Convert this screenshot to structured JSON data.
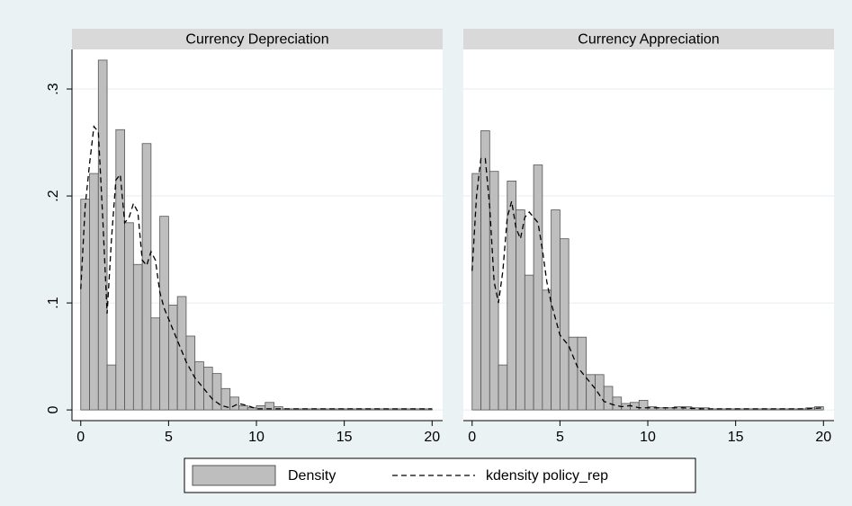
{
  "chart_data": {
    "type": "histogram",
    "series": [
      {
        "name": "Density",
        "color": "#bebebe"
      },
      {
        "name": "kdensity policy_rep",
        "color": "#000000"
      }
    ],
    "xlim": [
      -0.5,
      20.6
    ],
    "xticks": [
      0,
      5,
      10,
      15,
      20
    ],
    "ylim": [
      -0.01,
      0.337
    ],
    "yticks": [
      0,
      {
        "value": 0.1,
        "label": ".1"
      },
      {
        "value": 0.2,
        "label": ".2"
      },
      {
        "value": 0.3,
        "label": ".3"
      }
    ],
    "grid": true,
    "panels": [
      {
        "title": "Currency Depreciation",
        "bins": [
          0,
          0.5,
          1,
          1.5,
          2,
          2.5,
          3,
          3.5,
          4,
          4.5,
          5,
          5.5,
          6,
          6.5,
          7,
          7.5,
          8,
          8.5,
          9,
          9.5,
          10,
          10.5,
          11,
          11.5,
          12,
          12.5,
          13,
          13.5,
          14,
          14.5,
          15,
          15.5,
          16,
          16.5,
          17,
          17.5,
          18,
          18.5,
          19,
          19.5,
          20
        ],
        "values": [
          0.197,
          0.221,
          0.327,
          0.042,
          0.262,
          0.175,
          0.136,
          0.249,
          0.086,
          0.181,
          0.098,
          0.106,
          0.069,
          0.045,
          0.04,
          0.034,
          0.02,
          0.012,
          0.004,
          0.002,
          0.004,
          0.007,
          0.003,
          0.001,
          0.001,
          0.001,
          0.001,
          0.001,
          0.001,
          0.001,
          0.001,
          0.001,
          0.001,
          0.001,
          0.001,
          0.001,
          0.001,
          0.001,
          0.001,
          0.001
        ],
        "kde_x": [
          0,
          0.25,
          0.5,
          0.75,
          1,
          1.25,
          1.5,
          1.75,
          2,
          2.25,
          2.5,
          2.75,
          3,
          3.25,
          3.5,
          3.75,
          4,
          4.25,
          4.5,
          4.75,
          5,
          5.5,
          6,
          6.5,
          7,
          7.5,
          8,
          8.5,
          9,
          9.5,
          10,
          11,
          12,
          13,
          14,
          15,
          16,
          17,
          18,
          19,
          20
        ],
        "kde_values": [
          0.113,
          0.19,
          0.23,
          0.265,
          0.26,
          0.18,
          0.09,
          0.16,
          0.215,
          0.22,
          0.175,
          0.18,
          0.193,
          0.185,
          0.14,
          0.135,
          0.148,
          0.14,
          0.11,
          0.095,
          0.085,
          0.065,
          0.045,
          0.03,
          0.02,
          0.01,
          0.004,
          0.002,
          0.006,
          0.004,
          0.001,
          0.001,
          0.001,
          0.001,
          0.001,
          0.001,
          0.001,
          0.001,
          0.001,
          0.001,
          0.001
        ]
      },
      {
        "title": "Currency Appreciation",
        "bins": [
          0,
          0.5,
          1,
          1.5,
          2,
          2.5,
          3,
          3.5,
          4,
          4.5,
          5,
          5.5,
          6,
          6.5,
          7,
          7.5,
          8,
          8.5,
          9,
          9.5,
          10,
          10.5,
          11,
          11.5,
          12,
          12.5,
          13,
          13.5,
          14,
          14.5,
          15,
          15.5,
          16,
          16.5,
          17,
          17.5,
          18,
          18.5,
          19,
          19.5,
          20
        ],
        "values": [
          0.221,
          0.261,
          0.223,
          0.042,
          0.214,
          0.187,
          0.126,
          0.229,
          0.112,
          0.187,
          0.16,
          0.068,
          0.068,
          0.033,
          0.033,
          0.022,
          0.012,
          0.006,
          0.007,
          0.009,
          0.003,
          0.002,
          0.002,
          0.003,
          0.003,
          0.002,
          0.002,
          0.001,
          0.001,
          0.001,
          0.001,
          0.001,
          0.001,
          0.001,
          0.001,
          0.001,
          0.001,
          0.001,
          0.002,
          0.003
        ],
        "kde_x": [
          0,
          0.25,
          0.5,
          0.75,
          1,
          1.25,
          1.5,
          1.75,
          2,
          2.25,
          2.5,
          2.75,
          3,
          3.25,
          3.5,
          3.75,
          4,
          4.25,
          4.5,
          4.75,
          5,
          5.5,
          6,
          6.5,
          7,
          7.5,
          8,
          8.5,
          9,
          9.5,
          10,
          11,
          12,
          13,
          14,
          15,
          16,
          17,
          18,
          19,
          20
        ],
        "kde_values": [
          0.13,
          0.2,
          0.235,
          0.235,
          0.19,
          0.12,
          0.1,
          0.13,
          0.18,
          0.195,
          0.17,
          0.16,
          0.18,
          0.185,
          0.18,
          0.175,
          0.15,
          0.12,
          0.1,
          0.085,
          0.07,
          0.06,
          0.04,
          0.03,
          0.02,
          0.008,
          0.005,
          0.003,
          0.004,
          0.002,
          0.002,
          0.002,
          0.002,
          0.001,
          0.001,
          0.001,
          0.001,
          0.001,
          0.001,
          0.001,
          0.002
        ]
      }
    ]
  }
}
